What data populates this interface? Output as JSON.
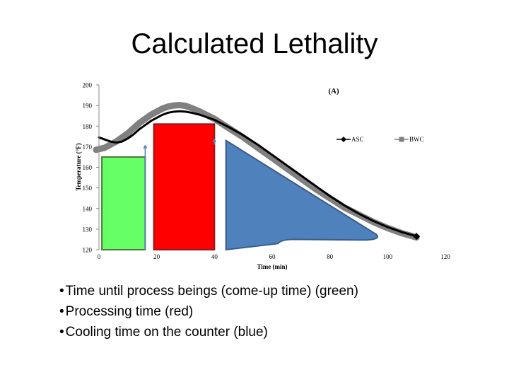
{
  "slide": {
    "title": "Calculated Lethality",
    "bullets": [
      "Time until process beings (come-up time) (green)",
      "Processing time (red)",
      "Cooling time on the counter (blue)"
    ]
  },
  "colors": {
    "green": "#66ff66",
    "red": "#ff0000",
    "blue": "#4f81bd",
    "asc": "#000000",
    "bwc": "#808080"
  },
  "chart_data": {
    "type": "line",
    "panel_label": "(A)",
    "xlabel": "Time (min)",
    "ylabel": "Temperature (°F)",
    "xlim": [
      0,
      120
    ],
    "ylim": [
      120,
      200
    ],
    "xticks": [
      0,
      20,
      40,
      60,
      80,
      100,
      120
    ],
    "yticks": [
      120,
      130,
      140,
      150,
      160,
      170,
      180,
      190,
      200
    ],
    "grid": false,
    "legend": "right",
    "series": [
      {
        "name": "ASC",
        "x": [
          0,
          2,
          4,
          6,
          8,
          10,
          12,
          14,
          16,
          18,
          20,
          22,
          24,
          26,
          28,
          30,
          32,
          35,
          40,
          45,
          50,
          55,
          60,
          65,
          70,
          75,
          80,
          85,
          90,
          95,
          100,
          105,
          110
        ],
        "y": [
          174.5,
          173.5,
          172.5,
          172,
          172.5,
          174,
          176,
          178.5,
          180.5,
          182.5,
          184,
          185.5,
          186.5,
          187,
          187.2,
          187,
          186.5,
          185.5,
          183,
          179.5,
          175.5,
          171,
          166,
          161,
          156,
          151,
          146,
          141.5,
          137.5,
          134,
          131,
          128.5,
          126.5
        ]
      },
      {
        "name": "BWC",
        "x": [
          -1,
          2,
          4,
          6,
          8,
          10,
          12,
          14,
          16,
          18,
          20,
          22,
          24,
          26,
          28,
          30,
          32,
          35,
          40,
          45,
          50,
          55,
          60,
          65,
          70,
          75,
          80,
          85,
          90,
          95,
          100,
          105,
          110
        ],
        "y": [
          168.5,
          169.5,
          171,
          172.5,
          174.5,
          176.5,
          179,
          181.5,
          183.5,
          185.5,
          187,
          188.5,
          189.5,
          190,
          190.2,
          189.8,
          188.8,
          187,
          183.5,
          179,
          174.5,
          169.5,
          164.5,
          159.5,
          154.5,
          149.5,
          145,
          140.5,
          137,
          133.5,
          130.5,
          128,
          126
        ]
      }
    ],
    "phases": [
      {
        "label": "green",
        "x0": 1,
        "x1": 16,
        "top": 165
      },
      {
        "label": "red",
        "x0": 19,
        "x1": 40,
        "top": 181
      },
      {
        "label": "blue",
        "x0": 44,
        "x1": 96,
        "top": 173
      }
    ],
    "arrows": [
      {
        "x": 16,
        "from": 120,
        "to": 171
      },
      {
        "x": 40,
        "from": 171,
        "to": 174
      }
    ]
  }
}
